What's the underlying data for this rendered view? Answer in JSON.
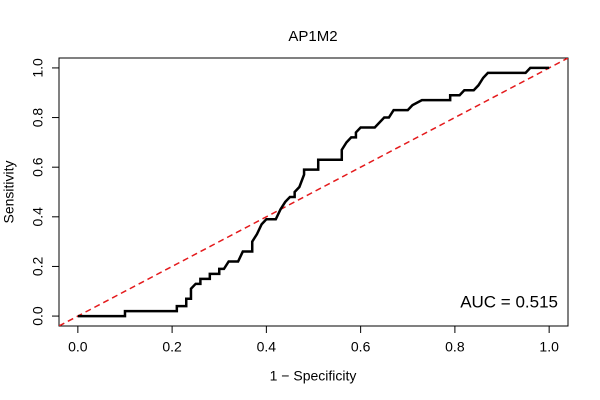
{
  "chart_data": {
    "type": "line",
    "title": "AP1M2",
    "xlabel": "1 − Specificity",
    "ylabel": "Sensitivity",
    "annotation": "AUC = 0.515",
    "xlim": [
      -0.04,
      1.04
    ],
    "ylim": [
      -0.04,
      1.04
    ],
    "xticks": [
      {
        "value": 0,
        "label": "0.0"
      },
      0.2,
      0.4,
      0.6,
      0.8,
      {
        "value": 1,
        "label": "1.0"
      }
    ],
    "yticks": [
      {
        "value": 0,
        "label": "0.0"
      },
      0.2,
      0.4,
      0.6,
      0.8,
      {
        "value": 1,
        "label": "1.0"
      }
    ],
    "reference_line": {
      "intercept": 0,
      "slope": 1,
      "color": "#e41a1c"
    },
    "x": [
      0,
      0.1,
      0.1,
      0.21,
      0.21,
      0.23,
      0.23,
      0.24,
      0.24,
      0.25,
      0.26,
      0.26,
      0.28,
      0.28,
      0.3,
      0.3,
      0.31,
      0.32,
      0.34,
      0.35,
      0.37,
      0.37,
      0.38,
      0.39,
      0.4,
      0.42,
      0.43,
      0.44,
      0.45,
      0.46,
      0.46,
      0.47,
      0.48,
      0.48,
      0.51,
      0.51,
      0.56,
      0.56,
      0.57,
      0.58,
      0.59,
      0.59,
      0.6,
      0.63,
      0.64,
      0.65,
      0.66,
      0.67,
      0.7,
      0.71,
      0.73,
      0.79,
      0.79,
      0.81,
      0.82,
      0.84,
      0.85,
      0.86,
      0.87,
      0.95,
      0.96,
      1
    ],
    "series": [
      {
        "color": "#000000",
        "values": [
          0,
          0,
          0.02,
          0.02,
          0.04,
          0.04,
          0.07,
          0.07,
          0.11,
          0.13,
          0.13,
          0.15,
          0.15,
          0.17,
          0.17,
          0.19,
          0.19,
          0.22,
          0.22,
          0.26,
          0.26,
          0.3,
          0.33,
          0.37,
          0.39,
          0.39,
          0.43,
          0.46,
          0.48,
          0.48,
          0.5,
          0.52,
          0.57,
          0.59,
          0.59,
          0.63,
          0.63,
          0.67,
          0.7,
          0.72,
          0.72,
          0.74,
          0.76,
          0.76,
          0.78,
          0.8,
          0.8,
          0.83,
          0.83,
          0.85,
          0.87,
          0.87,
          0.89,
          0.89,
          0.91,
          0.91,
          0.93,
          0.96,
          0.98,
          0.98,
          1,
          1
        ]
      }
    ]
  }
}
